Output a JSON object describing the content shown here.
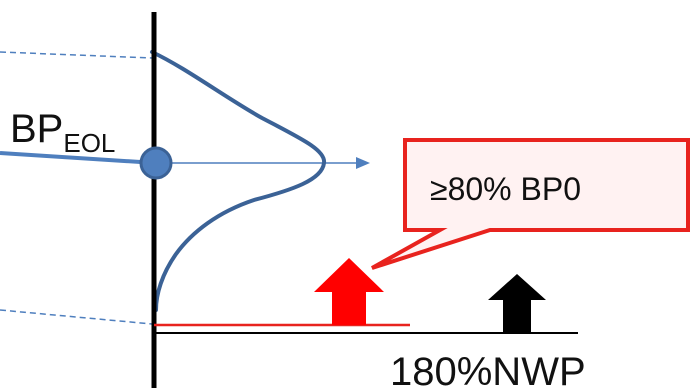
{
  "labels": {
    "bp_main": "BP",
    "bp_subscript": "EOL",
    "callout_text": "≥80% BP0",
    "axis_label": "180%NWP"
  },
  "colors": {
    "axis": "#000000",
    "curve": "#3B6296",
    "marker": "#4F7FBE",
    "callout_border": "#E8231E",
    "callout_fill": "#FFF2F2",
    "red_arrow": "#FF0000",
    "black_arrow": "#000000",
    "red_baseline": "#E8231E"
  },
  "icons": {
    "red_arrow": "up-arrow-icon",
    "black_arrow": "up-arrow-icon",
    "marker": "circle-marker-icon"
  }
}
